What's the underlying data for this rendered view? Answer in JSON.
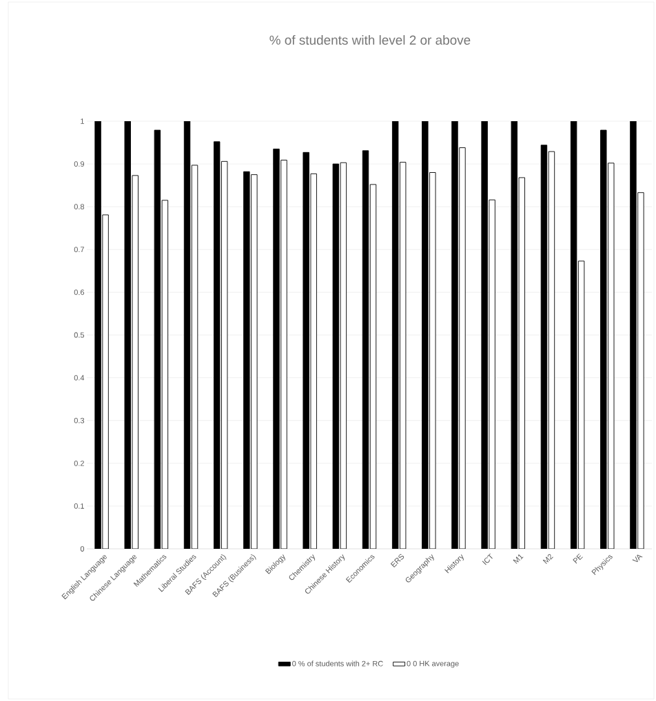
{
  "chart_data": {
    "type": "bar",
    "title": "% of students with level 2 or above",
    "categories": [
      "English Language",
      "Chinese Language",
      "Mathematics",
      "Liberal Studies",
      "BAFS (Account)",
      "BAFS (Business)",
      "Biology",
      "Chemistry",
      "Chinese History",
      "Economics",
      "ERS",
      "Geography",
      "History",
      "ICT",
      "M1",
      "M2",
      "PE",
      "Physics",
      "VA"
    ],
    "series": [
      {
        "name": "0 % of students with 2+ RC",
        "color": "#000000",
        "values": [
          1,
          1,
          0.979,
          1,
          0.952,
          0.882,
          0.935,
          0.927,
          0.9,
          0.931,
          1,
          1,
          1,
          1,
          1,
          0.944,
          1,
          0.979,
          1
        ]
      },
      {
        "name": "0 0 HK average",
        "color": "#ffffff",
        "values": [
          0.781,
          0.873,
          0.815,
          0.897,
          0.906,
          0.875,
          0.909,
          0.877,
          0.903,
          0.852,
          0.904,
          0.88,
          0.938,
          0.816,
          0.868,
          0.929,
          0.673,
          0.902,
          0.833
        ]
      }
    ],
    "ylim": [
      0,
      1
    ],
    "yticks": [
      0,
      0.1,
      0.2,
      0.3,
      0.4,
      0.5,
      0.6,
      0.7,
      0.8,
      0.9,
      1
    ],
    "grid": "y",
    "legend": "bottom"
  }
}
